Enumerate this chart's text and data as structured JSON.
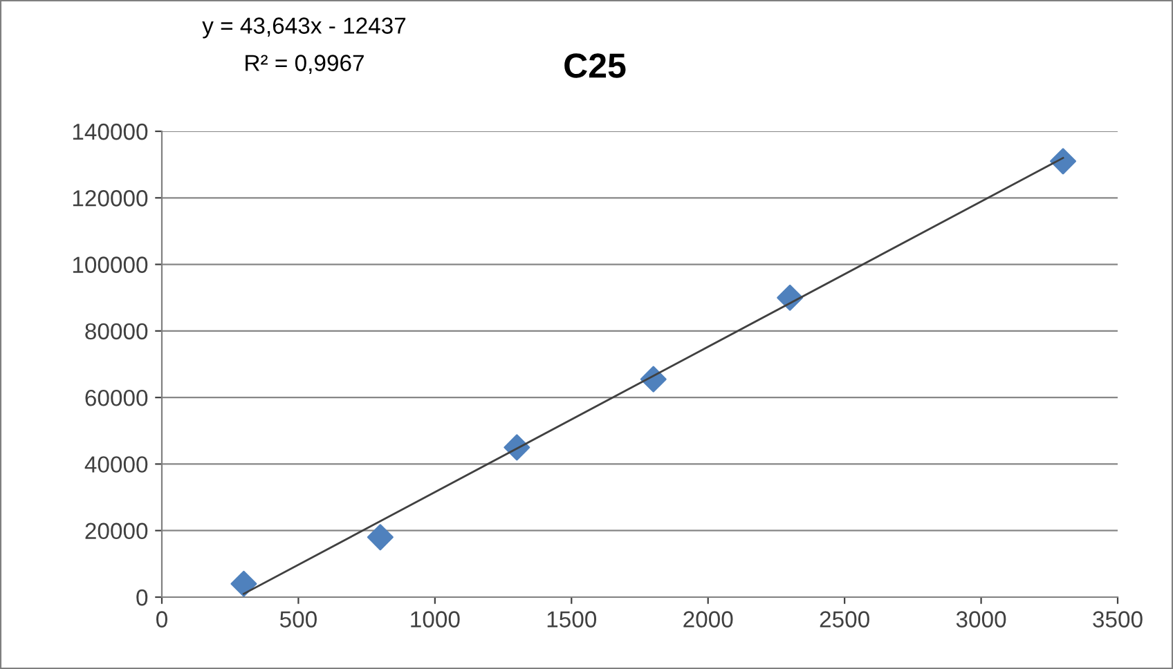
{
  "chart_data": {
    "type": "scatter",
    "title": "C25",
    "annotations": [
      "y = 43,643x - 12437",
      "R² = 0,9967"
    ],
    "series": [
      {
        "color": "#4f81bd",
        "marker": "diamond",
        "x": [
          300,
          800,
          1300,
          1800,
          2300,
          3300
        ],
        "values": [
          4000,
          18000,
          45000,
          65500,
          90000,
          131000
        ]
      },
      {
        "type": "line",
        "color": "#404040",
        "marker": "none",
        "line_style": "solid",
        "x": [
          300,
          3300
        ],
        "values": [
          1000,
          132000
        ]
      }
    ],
    "xlim": [
      0,
      3500
    ],
    "xticks": [
      0,
      500,
      1000,
      1500,
      2000,
      2500,
      3000,
      3500
    ],
    "ylim": [
      0,
      140000
    ],
    "yticks": [
      0,
      20000,
      40000,
      60000,
      80000,
      100000,
      120000,
      140000
    ],
    "grid": "y",
    "legend": false
  }
}
